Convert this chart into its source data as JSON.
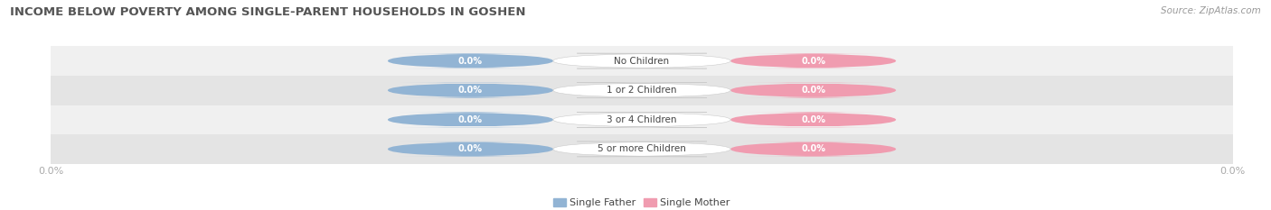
{
  "title": "INCOME BELOW POVERTY AMONG SINGLE-PARENT HOUSEHOLDS IN GOSHEN",
  "source_text": "Source: ZipAtlas.com",
  "categories": [
    "No Children",
    "1 or 2 Children",
    "3 or 4 Children",
    "5 or more Children"
  ],
  "single_father_values": [
    0.0,
    0.0,
    0.0,
    0.0
  ],
  "single_mother_values": [
    0.0,
    0.0,
    0.0,
    0.0
  ],
  "father_color": "#92b4d4",
  "mother_color": "#f09cb0",
  "row_bg_even": "#f0f0f0",
  "row_bg_odd": "#e4e4e4",
  "label_color": "#444444",
  "title_color": "#555555",
  "source_color": "#999999",
  "axis_tick_color": "#aaaaaa",
  "figsize": [
    14.06,
    2.33
  ],
  "dpi": 100,
  "legend_father_label": "Single Father",
  "legend_mother_label": "Single Mother",
  "value_label": "0.0%",
  "left_tick_label": "0.0%",
  "right_tick_label": "0.0%"
}
